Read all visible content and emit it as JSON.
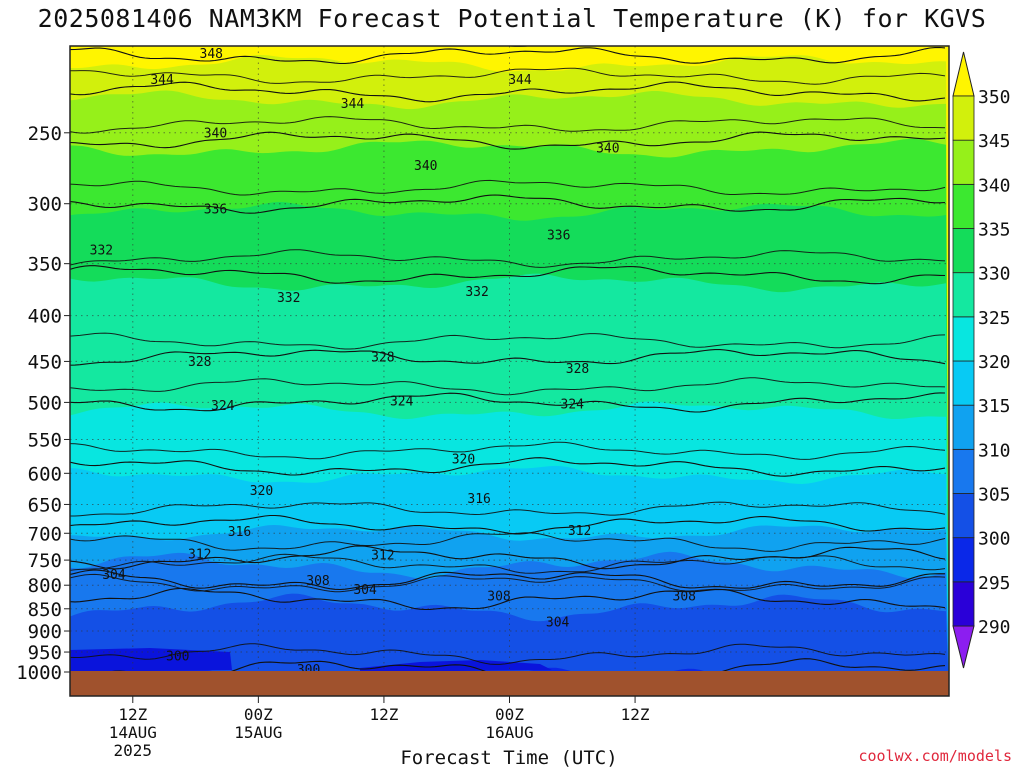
{
  "title": "2025081406 NAM3KM Forecast Potential Temperature (K) for KGVS",
  "watermark": "coolwx.com/models",
  "colors": {
    "ground": "#a0522d",
    "contour": "#111111",
    "watermark": "#e0283c"
  },
  "chart_data": {
    "type": "heatmap",
    "title": "2025081406 NAM3KM Forecast Potential Temperature (K) for KGVS",
    "xlabel": "Forecast Time (UTC)",
    "ylabel": "",
    "x_axis": {
      "range_hours": [
        0,
        84
      ],
      "ticks": [
        {
          "hour": 6,
          "lines": [
            "12Z",
            "14AUG",
            "2025"
          ]
        },
        {
          "hour": 18,
          "lines": [
            "00Z",
            "15AUG"
          ]
        },
        {
          "hour": 30,
          "lines": [
            "12Z"
          ]
        },
        {
          "hour": 42,
          "lines": [
            "00Z",
            "16AUG"
          ]
        },
        {
          "hour": 54,
          "lines": [
            "12Z"
          ]
        }
      ]
    },
    "y_axis": {
      "units": "hPa",
      "range": [
        1000,
        200
      ],
      "ticks": [
        1000,
        950,
        900,
        850,
        800,
        750,
        700,
        650,
        600,
        550,
        500,
        450,
        400,
        350,
        300,
        250
      ]
    },
    "colorbar": {
      "labels": [
        290,
        295,
        300,
        305,
        310,
        315,
        320,
        325,
        330,
        335,
        340,
        345,
        350
      ],
      "bands": [
        {
          "from": 285,
          "to": 290,
          "color": "#8c1ef0"
        },
        {
          "from": 290,
          "to": 295,
          "color": "#2a00d8"
        },
        {
          "from": 295,
          "to": 300,
          "color": "#0a28e8"
        },
        {
          "from": 300,
          "to": 305,
          "color": "#1450e6"
        },
        {
          "from": 305,
          "to": 310,
          "color": "#1878ee"
        },
        {
          "from": 310,
          "to": 315,
          "color": "#10a2f0"
        },
        {
          "from": 315,
          "to": 320,
          "color": "#08caf4"
        },
        {
          "from": 320,
          "to": 325,
          "color": "#08e6e0"
        },
        {
          "from": 325,
          "to": 330,
          "color": "#14e8a0"
        },
        {
          "from": 330,
          "to": 335,
          "color": "#14dc5a"
        },
        {
          "from": 335,
          "to": 340,
          "color": "#3ce830"
        },
        {
          "from": 340,
          "to": 345,
          "color": "#96f01a"
        },
        {
          "from": 345,
          "to": 350,
          "color": "#d2f00c"
        },
        {
          "from": 350,
          "to": 355,
          "color": "#fff500"
        }
      ]
    },
    "isentropes": [
      {
        "theta": 300,
        "p": 995
      },
      {
        "theta": 304,
        "p": 830
      },
      {
        "theta": 308,
        "p": 790
      },
      {
        "theta": 312,
        "p": 745
      },
      {
        "theta": 316,
        "p": 685
      },
      {
        "theta": 320,
        "p": 590
      },
      {
        "theta": 324,
        "p": 500
      },
      {
        "theta": 328,
        "p": 445
      },
      {
        "theta": 332,
        "p": 360
      },
      {
        "theta": 336,
        "p": 300
      },
      {
        "theta": 340,
        "p": 255
      },
      {
        "theta": 344,
        "p": 225
      },
      {
        "theta": 348,
        "p": 205
      }
    ],
    "contour_labels": [
      {
        "text": "348",
        "hour": 13.5,
        "p": 204
      },
      {
        "text": "344",
        "hour": 8.8,
        "p": 218
      },
      {
        "text": "344",
        "hour": 27.0,
        "p": 232
      },
      {
        "text": "344",
        "hour": 43.0,
        "p": 218
      },
      {
        "text": "340",
        "hour": 13.9,
        "p": 250
      },
      {
        "text": "340",
        "hour": 34.0,
        "p": 272
      },
      {
        "text": "340",
        "hour": 51.4,
        "p": 260
      },
      {
        "text": "336",
        "hour": 13.9,
        "p": 304
      },
      {
        "text": "336",
        "hour": 46.7,
        "p": 325
      },
      {
        "text": "332",
        "hour": 3.0,
        "p": 338
      },
      {
        "text": "332",
        "hour": 20.9,
        "p": 382
      },
      {
        "text": "332",
        "hour": 38.9,
        "p": 376
      },
      {
        "text": "328",
        "hour": 12.4,
        "p": 450
      },
      {
        "text": "328",
        "hour": 29.9,
        "p": 445
      },
      {
        "text": "328",
        "hour": 48.5,
        "p": 458
      },
      {
        "text": "324",
        "hour": 14.6,
        "p": 504
      },
      {
        "text": "324",
        "hour": 31.7,
        "p": 498
      },
      {
        "text": "324",
        "hour": 48.0,
        "p": 502
      },
      {
        "text": "320",
        "hour": 18.3,
        "p": 627
      },
      {
        "text": "320",
        "hour": 37.6,
        "p": 578
      },
      {
        "text": "316",
        "hour": 16.2,
        "p": 697
      },
      {
        "text": "316",
        "hour": 39.1,
        "p": 640
      },
      {
        "text": "312",
        "hour": 12.4,
        "p": 738
      },
      {
        "text": "312",
        "hour": 29.9,
        "p": 740
      },
      {
        "text": "312",
        "hour": 48.7,
        "p": 695
      },
      {
        "text": "308",
        "hour": 23.7,
        "p": 790
      },
      {
        "text": "308",
        "hour": 41.0,
        "p": 822
      },
      {
        "text": "308",
        "hour": 58.7,
        "p": 822
      },
      {
        "text": "304",
        "hour": 4.2,
        "p": 778
      },
      {
        "text": "304",
        "hour": 28.2,
        "p": 809
      },
      {
        "text": "304",
        "hour": 46.6,
        "p": 879
      },
      {
        "text": "300",
        "hour": 10.3,
        "p": 960
      },
      {
        "text": "300",
        "hour": 22.8,
        "p": 994
      }
    ]
  }
}
